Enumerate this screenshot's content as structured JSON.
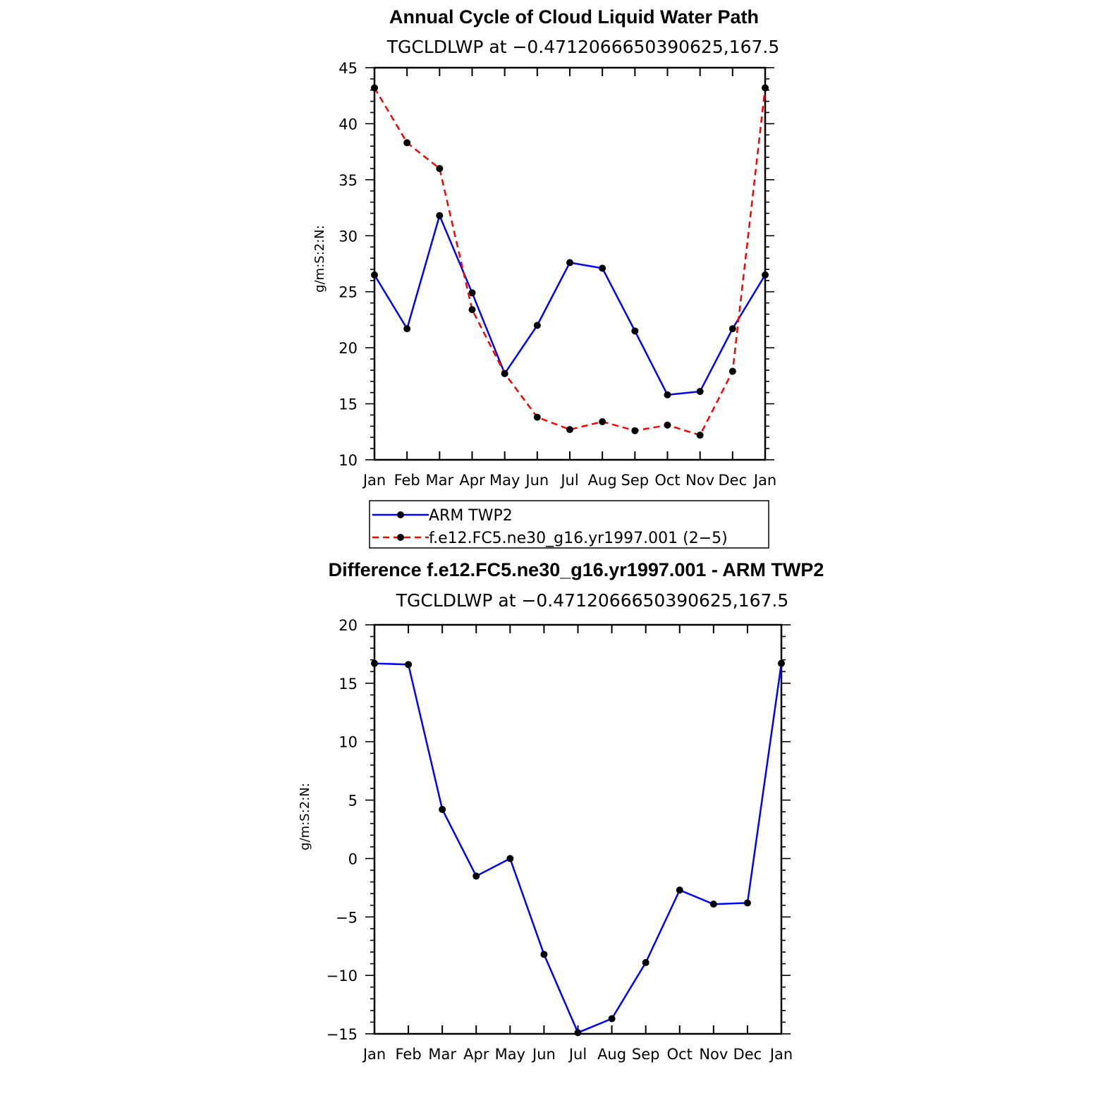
{
  "chart_data": [
    {
      "type": "line",
      "title": "Annual Cycle of Cloud Liquid Water Path",
      "subtitle": "TGCLDLWP at −0.4712066650390625,167.5",
      "xlabel": "",
      "ylabel": "g/m:S:2:N:",
      "x": [
        "Jan",
        "Feb",
        "Mar",
        "Apr",
        "May",
        "Jun",
        "Jul",
        "Aug",
        "Sep",
        "Oct",
        "Nov",
        "Dec",
        "Jan"
      ],
      "ylim": [
        10,
        45
      ],
      "yticks": [
        "10",
        "15",
        "20",
        "25",
        "30",
        "35",
        "40",
        "45"
      ],
      "grid": false,
      "legend_position": "below",
      "series": [
        {
          "name": "ARM TWP2",
          "color": "#0000ff",
          "dash": "solid",
          "values": [
            26.5,
            21.7,
            31.8,
            24.9,
            17.7,
            22.0,
            27.6,
            27.1,
            21.5,
            15.8,
            16.1,
            21.7,
            26.5
          ]
        },
        {
          "name": "f.e12.FC5.ne30_g16.yr1997.001 (2−5)",
          "color": "#ff0000",
          "dash": "dashed",
          "values": [
            43.2,
            38.3,
            36.0,
            23.4,
            17.7,
            13.8,
            12.7,
            13.4,
            12.6,
            13.1,
            12.2,
            17.9,
            43.2
          ]
        }
      ]
    },
    {
      "type": "line",
      "title": "Difference f.e12.FC5.ne30_g16.yr1997.001 - ARM TWP2",
      "subtitle": "TGCLDLWP at −0.4712066650390625,167.5",
      "xlabel": "",
      "ylabel": "g/m:S:2:N:",
      "x": [
        "Jan",
        "Feb",
        "Mar",
        "Apr",
        "May",
        "Jun",
        "Jul",
        "Aug",
        "Sep",
        "Oct",
        "Nov",
        "Dec",
        "Jan"
      ],
      "ylim": [
        -15,
        20
      ],
      "yticks": [
        "−15",
        "−10",
        "−5",
        "0",
        "5",
        "10",
        "15",
        "20"
      ],
      "grid": false,
      "series": [
        {
          "color": "#0000ff",
          "dash": "solid",
          "values": [
            16.7,
            16.6,
            4.2,
            -1.5,
            0.0,
            -8.2,
            -14.9,
            -13.7,
            -8.9,
            -2.7,
            -3.9,
            -3.8,
            16.7
          ]
        }
      ]
    }
  ]
}
